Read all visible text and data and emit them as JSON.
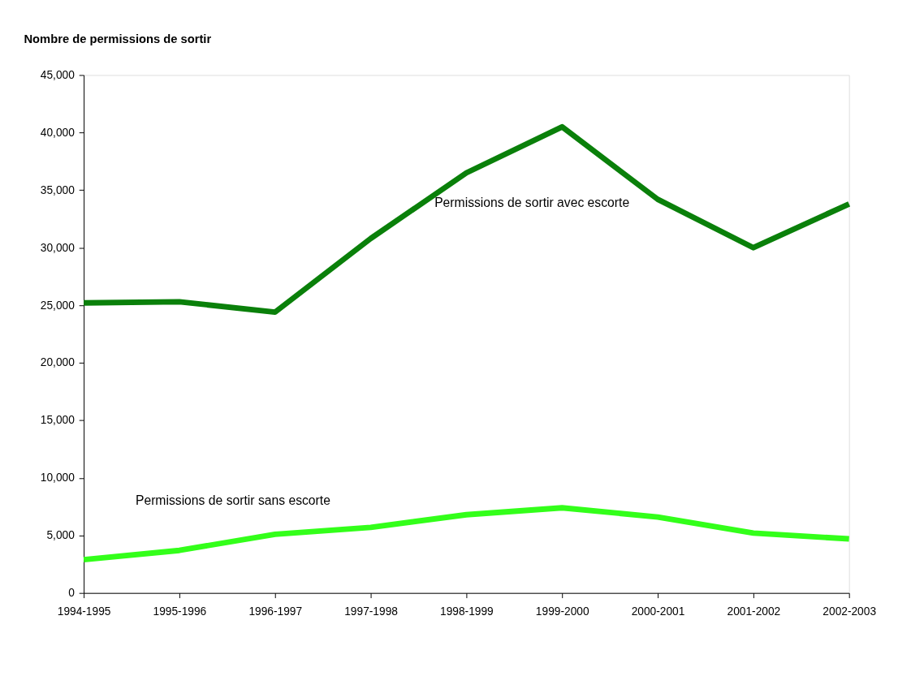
{
  "chart_data": {
    "type": "line",
    "title": "Nombre de permissions de sortir",
    "categories": [
      "1994-1995",
      "1995-1996",
      "1996-1997",
      "1997-1998",
      "1998-1999",
      "1999-2000",
      "2000-2001",
      "2001-2002",
      "2002-2003"
    ],
    "series": [
      {
        "name": "Permissions de sortir avec escorte",
        "color": "#0a800a",
        "values": [
          25200,
          25300,
          24400,
          30800,
          36500,
          40500,
          34200,
          30000,
          33800
        ]
      },
      {
        "name": "Permissions de sortir sans escorte",
        "color": "#33ff1a",
        "values": [
          2900,
          3700,
          5100,
          5700,
          6800,
          7400,
          6600,
          5200,
          4700
        ]
      }
    ],
    "ylim": [
      0,
      45000
    ],
    "yticks": [
      0,
      {
        "value": 5000,
        "label": "5,000"
      },
      {
        "value": 10000,
        "label": "10,000"
      },
      {
        "value": 15000,
        "label": "15,000"
      },
      {
        "value": 20000,
        "label": "20,000"
      },
      {
        "value": 25000,
        "label": "25,000"
      },
      {
        "value": 30000,
        "label": "30,000"
      },
      {
        "value": 35000,
        "label": "35,000"
      },
      {
        "value": 40000,
        "label": "40,000"
      },
      {
        "value": 45000,
        "label": "45,000"
      }
    ],
    "grid": false,
    "marker": "none",
    "line_style": "solid"
  }
}
